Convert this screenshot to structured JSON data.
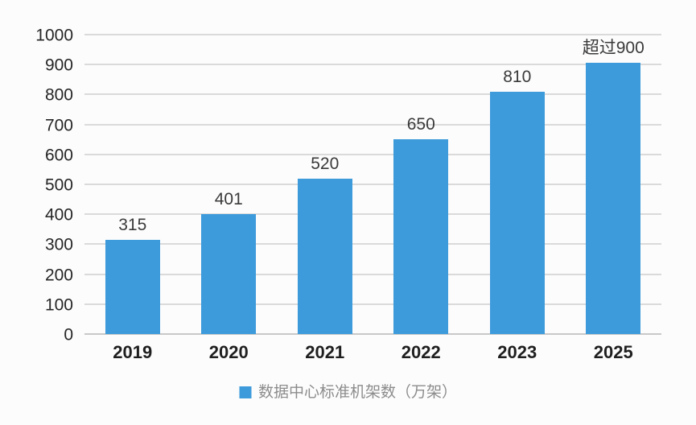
{
  "chart_data": {
    "type": "bar",
    "categories": [
      "2019",
      "2020",
      "2021",
      "2022",
      "2023",
      "2025"
    ],
    "values": [
      315,
      401,
      520,
      650,
      810,
      905
    ],
    "data_labels": [
      "315",
      "401",
      "520",
      "650",
      "810",
      "超过900"
    ],
    "series_name": "数据中心标准机架数（万架）",
    "legend": "数据中心标准机架数（万架）",
    "title": "",
    "xlabel": "",
    "ylabel": "",
    "ylim": [
      0,
      1000
    ],
    "y_ticks": [
      0,
      100,
      200,
      300,
      400,
      500,
      600,
      700,
      800,
      900,
      1000
    ],
    "grid": true,
    "legend_position": "bottom"
  },
  "colors": {
    "bar": "#3D9BDB",
    "gridline": "#DADADA",
    "axis_line": "#C8C8C8",
    "y_tick_label": "#262626",
    "data_label": "#3A3A3A",
    "x_label": "#1F1F1F",
    "legend_text": "#8C8C8C",
    "background": "#FCFCFC"
  }
}
